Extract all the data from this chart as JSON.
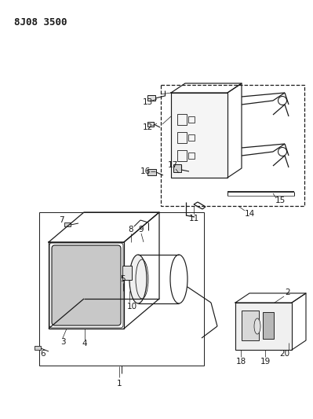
{
  "title": "8J08 3500",
  "bg_color": "#ffffff",
  "line_color": "#1a1a1a",
  "title_fontsize": 9,
  "label_fontsize": 7.5
}
